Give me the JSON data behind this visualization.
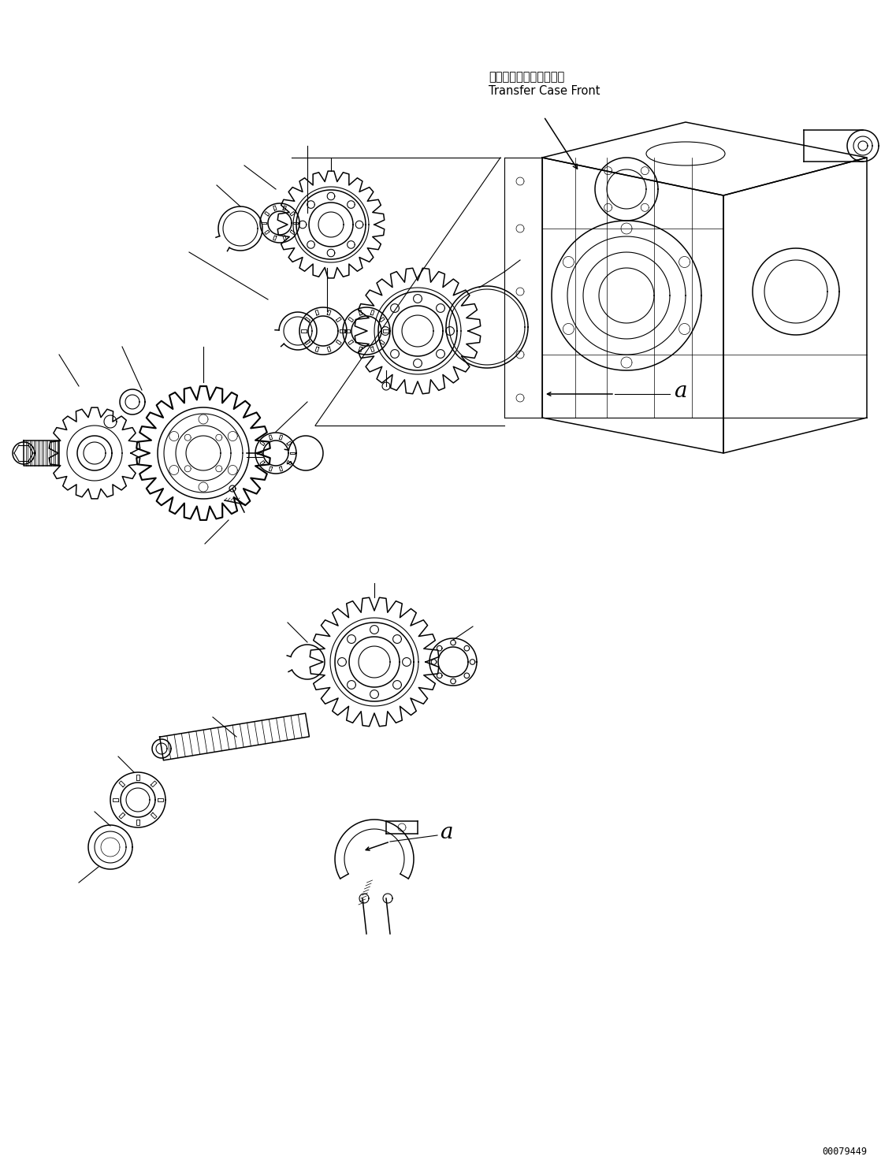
{
  "part_number": "00079449",
  "label_jp": "トランスファケース前方",
  "label_en": "Transfer Case Front",
  "label_a": "a",
  "bg_color": "#ffffff",
  "line_color": "#000000",
  "figsize": [
    11.37,
    14.86
  ],
  "dpi": 100
}
